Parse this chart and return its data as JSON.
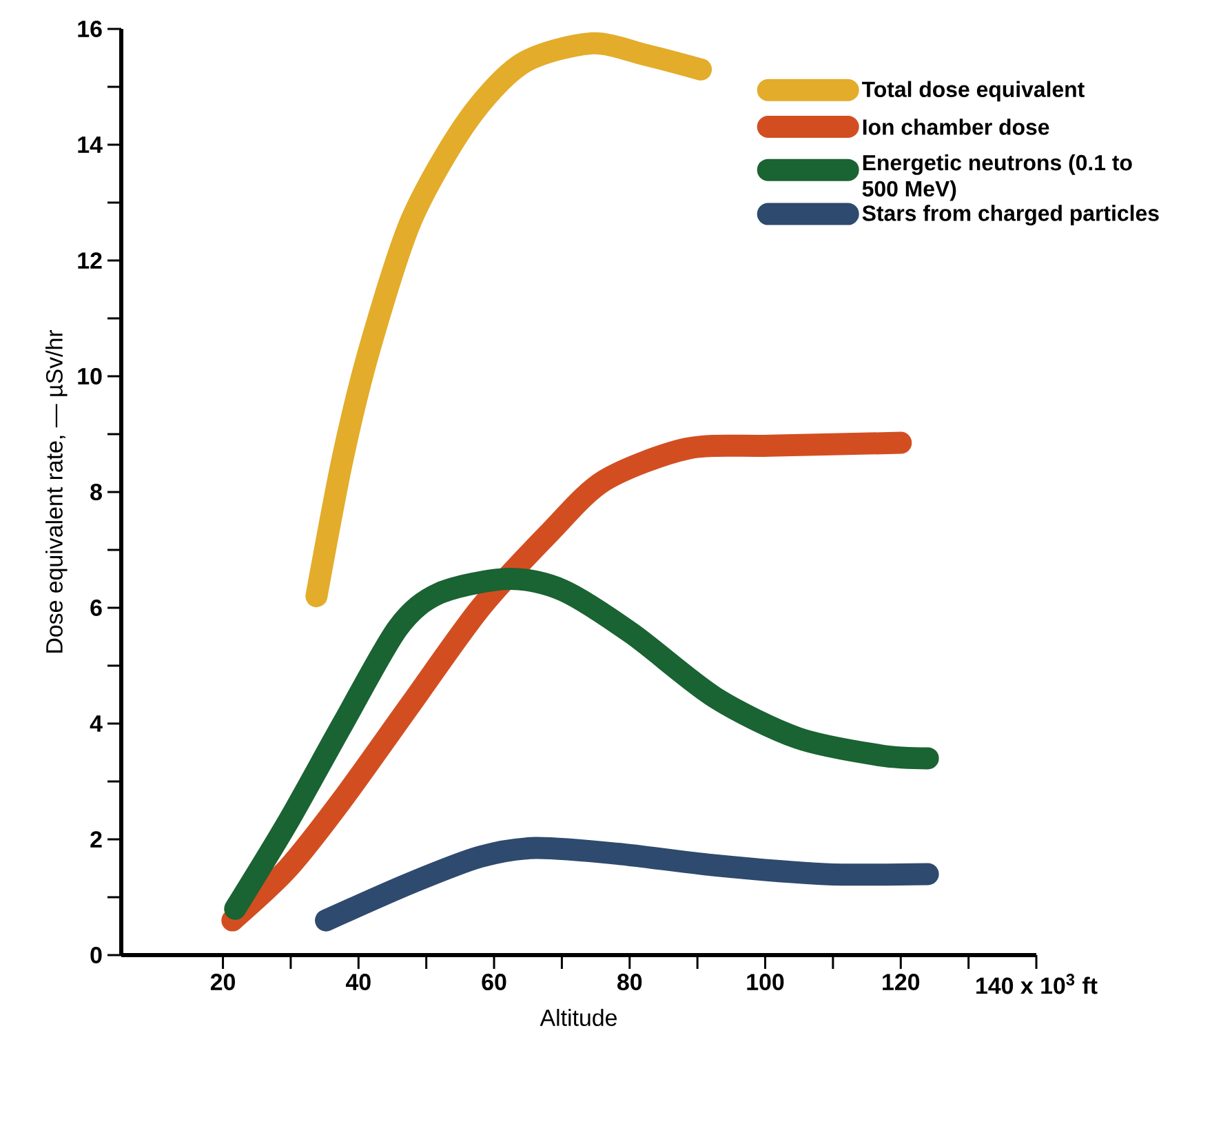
{
  "chart_data": {
    "type": "line",
    "xlabel": "Altitude",
    "ylabel": "Dose equivalent rate, — µSv/hr",
    "xlim": [
      5,
      140
    ],
    "ylim": [
      0,
      16
    ],
    "xticks": [
      20,
      {
        "value": 30,
        "label": null
      },
      40,
      {
        "value": 50,
        "label": null
      },
      60,
      {
        "value": 70,
        "label": null
      },
      80,
      {
        "value": 90,
        "label": null
      },
      100,
      {
        "value": 110,
        "label": null
      },
      120,
      {
        "value": 130,
        "label": null
      },
      {
        "value": 140,
        "label": "140 x 10$^{3}$ ft"
      }
    ],
    "yticks": [
      0,
      {
        "value": 1,
        "label": null
      },
      2,
      {
        "value": 3,
        "label": null
      },
      4,
      {
        "value": 5,
        "label": null
      },
      6,
      {
        "value": 7,
        "label": null
      },
      8,
      {
        "value": 9,
        "label": null
      },
      10,
      {
        "value": 11,
        "label": null
      },
      12,
      {
        "value": 13,
        "label": null
      },
      14,
      {
        "value": 15,
        "label": null
      },
      16
    ],
    "legend": "top right",
    "grid": false,
    "marker": "none",
    "line_style": "solid",
    "series": [
      {
        "name": "Total dose equivalent",
        "color": "#e3ac2a",
        "x": [
          33.8,
          37.7,
          41.7,
          47.8,
          56,
          64.1,
          74.3,
          82.4,
          90.5
        ],
        "values": [
          6.2,
          8.6,
          10.5,
          12.7,
          14.4,
          15.4,
          15.75,
          15.55,
          15.3
        ]
      },
      {
        "name": "Ion chamber dose",
        "color": "#d24e21",
        "x": [
          21.4,
          29.6,
          37.7,
          47.8,
          58,
          68.2,
          76.3,
          88.5,
          100.7,
          120
        ],
        "values": [
          0.6,
          1.5,
          2.7,
          4.35,
          6.0,
          7.3,
          8.2,
          8.75,
          8.8,
          8.85
        ]
      },
      {
        "name": "Energetic neutrons (0.1 to 500 MeV)",
        "color": "#1a6332",
        "x": [
          21.8,
          29.6,
          37.7,
          45.8,
          51.9,
          62.1,
          70.2,
          80.4,
          92.6,
          104.8,
          117,
          124
        ],
        "values": [
          0.8,
          2.3,
          4.0,
          5.65,
          6.25,
          6.5,
          6.3,
          5.55,
          4.45,
          3.75,
          3.45,
          3.4
        ]
      },
      {
        "name": "Stars from charged particles",
        "color": "#2e4a6e",
        "x": [
          35.2,
          47.8,
          58,
          66.1,
          78.3,
          92.6,
          108.8,
          124
        ],
        "values": [
          0.6,
          1.25,
          1.7,
          1.85,
          1.75,
          1.55,
          1.4,
          1.4
        ]
      }
    ]
  }
}
